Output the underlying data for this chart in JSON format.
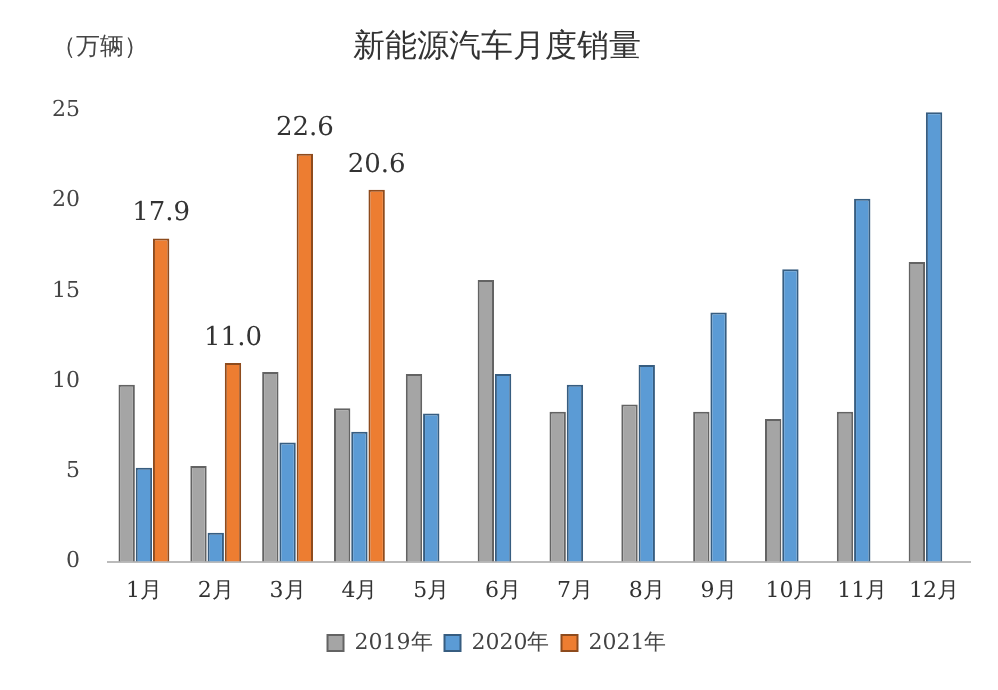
{
  "chart_data": {
    "type": "bar",
    "title": "新能源汽车月度销量",
    "ylabel": "（万辆）",
    "categories": [
      "1月",
      "2月",
      "3月",
      "4月",
      "5月",
      "6月",
      "7月",
      "8月",
      "9月",
      "10月",
      "11月",
      "12月"
    ],
    "series": [
      {
        "name": "2019年",
        "color": "#a5a5a5",
        "values": [
          9.8,
          5.3,
          10.5,
          8.5,
          10.4,
          15.6,
          8.3,
          8.7,
          8.3,
          7.9,
          8.3,
          16.6
        ]
      },
      {
        "name": "2020年",
        "color": "#5b9bd5",
        "values": [
          5.2,
          1.6,
          6.6,
          7.2,
          8.2,
          10.4,
          9.8,
          10.9,
          13.8,
          16.2,
          20.1,
          24.9
        ]
      },
      {
        "name": "2021年",
        "color": "#ed7d31",
        "values": [
          17.9,
          11.0,
          22.6,
          20.6,
          null,
          null,
          null,
          null,
          null,
          null,
          null,
          null
        ],
        "value_labels": [
          "17.9",
          "11.0",
          "22.6",
          "20.6",
          null,
          null,
          null,
          null,
          null,
          null,
          null,
          null
        ]
      }
    ],
    "ylim": [
      0,
      25
    ],
    "yticks": [
      0,
      5,
      10,
      15,
      20,
      25
    ],
    "grid": false,
    "legend": "bottom"
  }
}
